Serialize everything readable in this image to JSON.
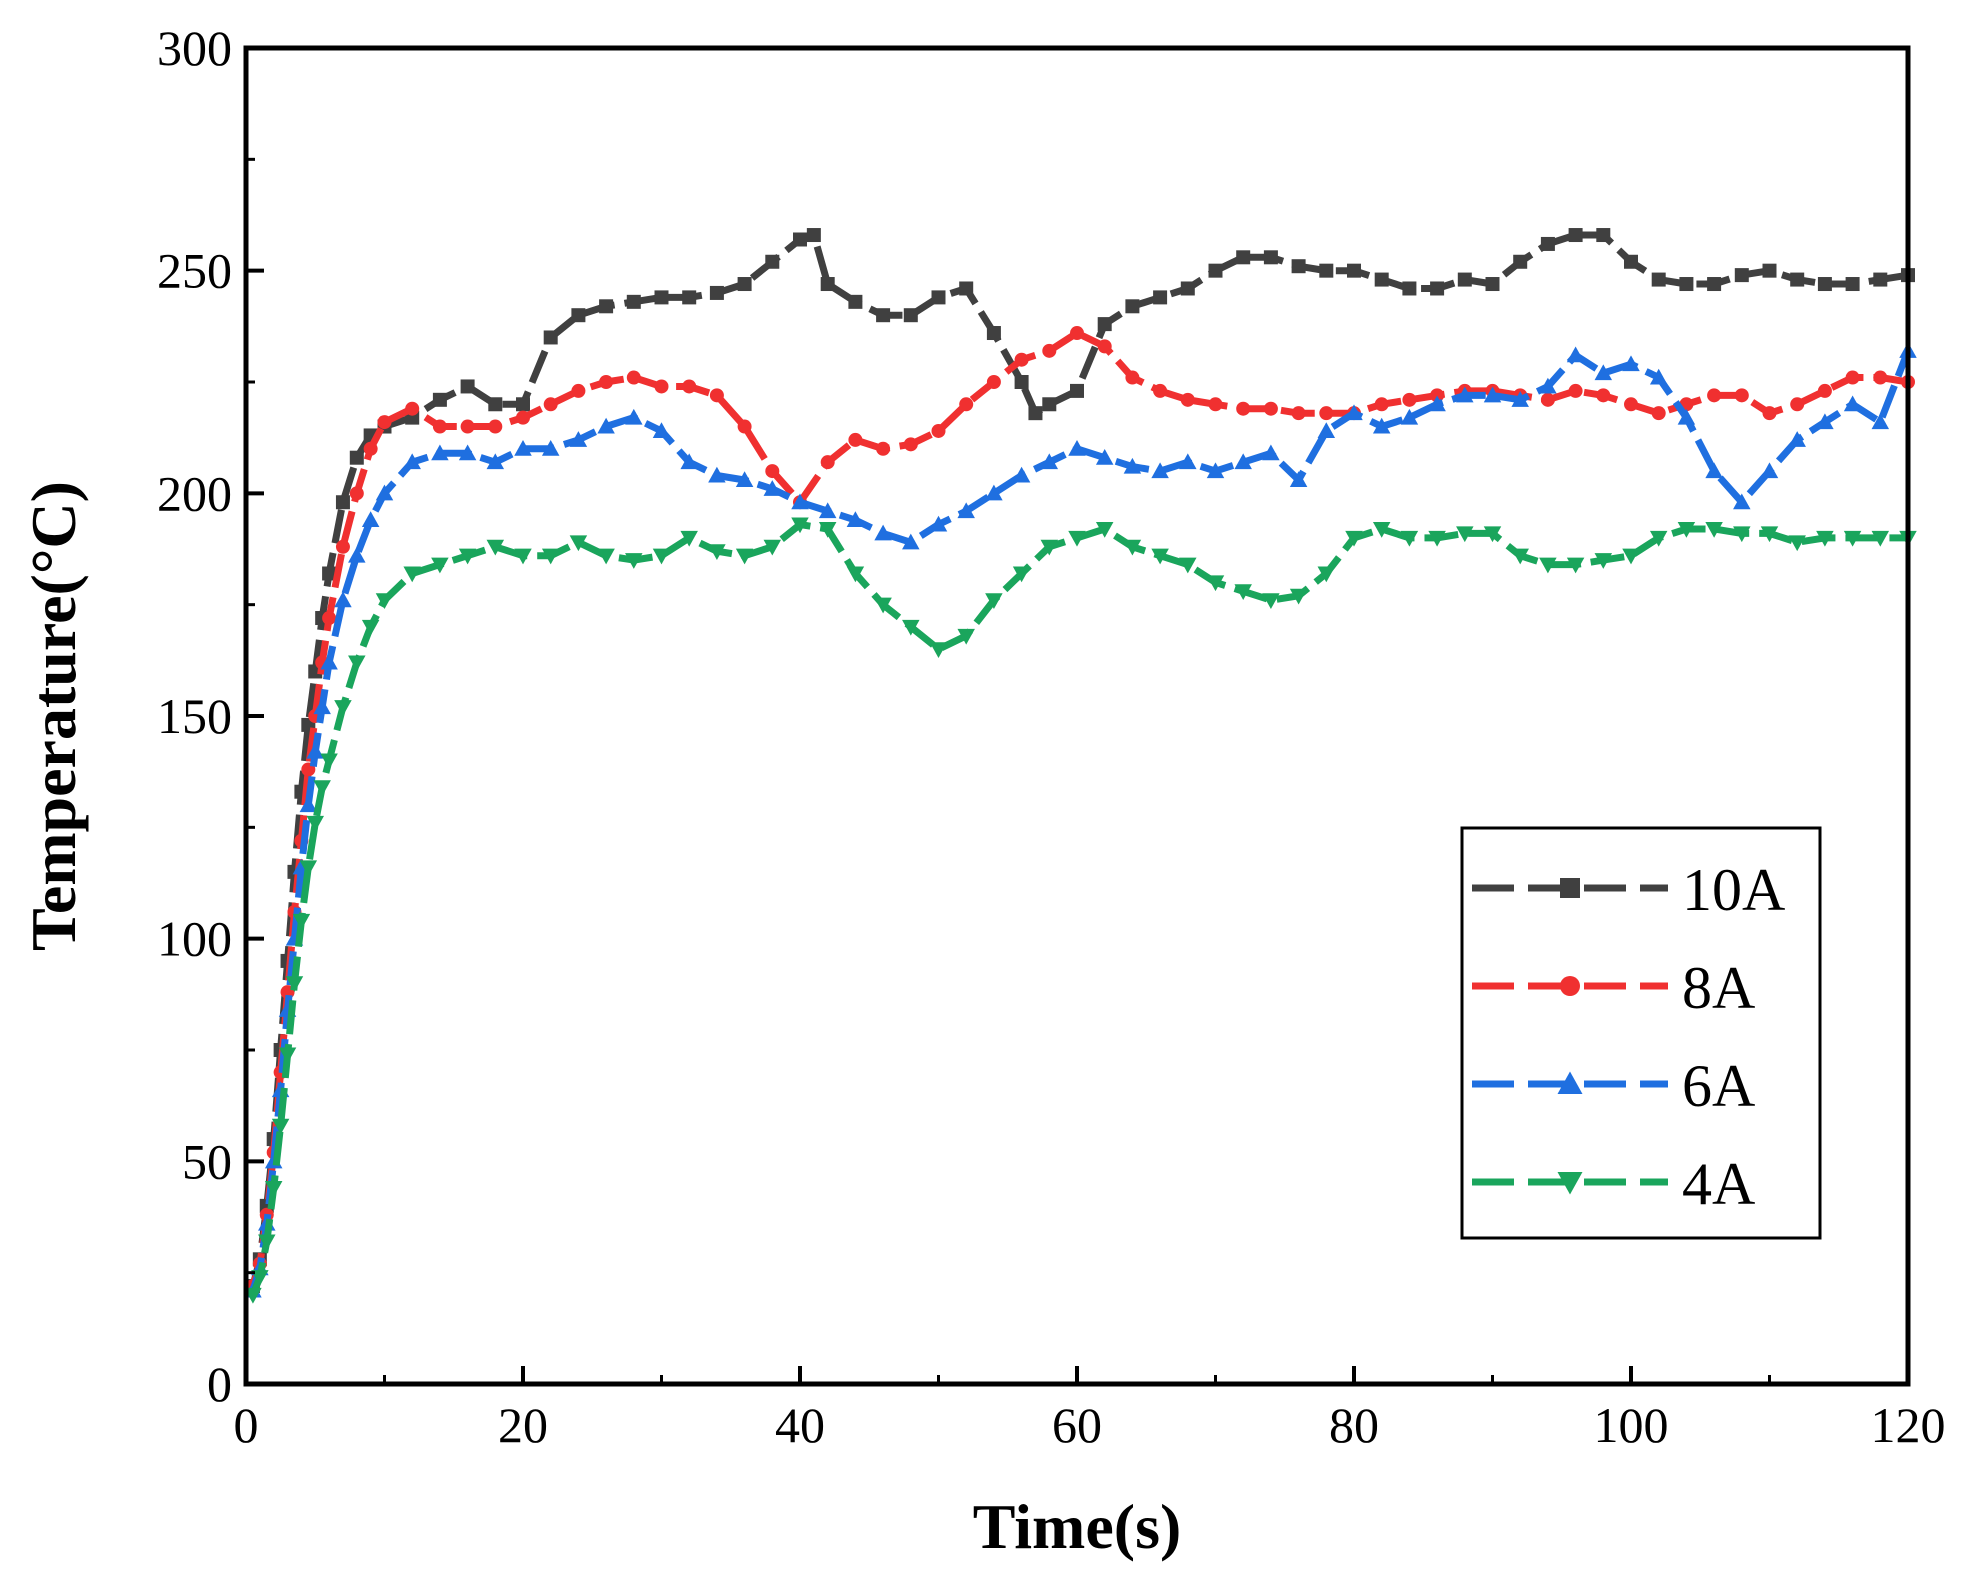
{
  "chart_data": {
    "type": "line",
    "title": "",
    "xlabel": "Time(s)",
    "ylabel": "Temperature(°C)",
    "xlim": [
      0,
      120
    ],
    "ylim": [
      0,
      300
    ],
    "xticks": [
      0,
      20,
      40,
      60,
      80,
      100,
      120
    ],
    "yticks": [
      0,
      50,
      100,
      150,
      200,
      250,
      300
    ],
    "grid": false,
    "legend_position": "right",
    "series": [
      {
        "name": "10A",
        "color": "#404040",
        "marker": "square",
        "x": [
          0.5,
          1,
          1.5,
          2,
          2.5,
          3,
          3.5,
          4,
          4.5,
          5,
          5.5,
          6,
          7,
          8,
          9,
          10,
          12,
          14,
          16,
          18,
          20,
          22,
          24,
          26,
          28,
          30,
          32,
          34,
          36,
          38,
          40,
          41,
          42,
          44,
          46,
          48,
          50,
          52,
          54,
          56,
          57,
          58,
          60,
          62,
          64,
          66,
          68,
          70,
          72,
          74,
          76,
          78,
          80,
          82,
          84,
          86,
          88,
          90,
          92,
          94,
          96,
          98,
          100,
          102,
          104,
          106,
          108,
          110,
          112,
          114,
          116,
          118,
          120
        ],
        "y": [
          22,
          28,
          40,
          55,
          75,
          95,
          115,
          133,
          148,
          160,
          172,
          182,
          198,
          208,
          213,
          215,
          217,
          221,
          224,
          220,
          220,
          235,
          240,
          242,
          243,
          244,
          244,
          245,
          247,
          252,
          257,
          258,
          247,
          243,
          240,
          240,
          244,
          246,
          236,
          225,
          218,
          220,
          223,
          238,
          242,
          244,
          246,
          250,
          253,
          253,
          251,
          250,
          250,
          248,
          246,
          246,
          248,
          247,
          252,
          256,
          258,
          258,
          252,
          248,
          247,
          247,
          249,
          250,
          248,
          247,
          247,
          248,
          249
        ]
      },
      {
        "name": "8A",
        "color": "#f03030",
        "marker": "circle",
        "x": [
          0.5,
          1,
          1.5,
          2,
          2.5,
          3,
          3.5,
          4,
          4.5,
          5,
          5.5,
          6,
          7,
          8,
          9,
          10,
          12,
          14,
          16,
          18,
          20,
          22,
          24,
          26,
          28,
          30,
          32,
          34,
          36,
          38,
          40,
          42,
          44,
          46,
          48,
          50,
          52,
          54,
          56,
          58,
          60,
          62,
          64,
          66,
          68,
          70,
          72,
          74,
          76,
          78,
          80,
          82,
          84,
          86,
          88,
          90,
          92,
          94,
          96,
          98,
          100,
          102,
          104,
          106,
          108,
          110,
          112,
          114,
          116,
          118,
          120
        ],
        "y": [
          22,
          27,
          38,
          52,
          70,
          88,
          106,
          122,
          138,
          150,
          162,
          172,
          188,
          200,
          210,
          216,
          219,
          215,
          215,
          215,
          217,
          220,
          223,
          225,
          226,
          224,
          224,
          222,
          215,
          205,
          198,
          207,
          212,
          210,
          211,
          214,
          220,
          225,
          230,
          232,
          236,
          233,
          226,
          223,
          221,
          220,
          219,
          219,
          218,
          218,
          218,
          220,
          221,
          222,
          223,
          223,
          222,
          221,
          223,
          222,
          220,
          218,
          220,
          222,
          222,
          218,
          220,
          223,
          226,
          226,
          225
        ]
      },
      {
        "name": "6A",
        "color": "#1f6fe0",
        "marker": "triangle-up",
        "x": [
          0.5,
          1,
          1.5,
          2,
          2.5,
          3,
          3.5,
          4,
          4.5,
          5,
          5.5,
          6,
          7,
          8,
          9,
          10,
          12,
          14,
          16,
          18,
          20,
          22,
          24,
          26,
          28,
          30,
          32,
          34,
          36,
          38,
          40,
          42,
          44,
          46,
          48,
          50,
          52,
          54,
          56,
          58,
          60,
          62,
          64,
          66,
          68,
          70,
          72,
          74,
          76,
          78,
          80,
          82,
          84,
          86,
          88,
          90,
          92,
          94,
          96,
          98,
          100,
          102,
          104,
          106,
          108,
          110,
          112,
          114,
          116,
          118,
          120
        ],
        "y": [
          21,
          26,
          36,
          50,
          66,
          84,
          100,
          116,
          130,
          142,
          152,
          162,
          176,
          186,
          194,
          200,
          207,
          209,
          209,
          207,
          210,
          210,
          212,
          215,
          217,
          214,
          207,
          204,
          203,
          201,
          198,
          196,
          194,
          191,
          189,
          193,
          196,
          200,
          204,
          207,
          210,
          208,
          206,
          205,
          207,
          205,
          207,
          209,
          203,
          214,
          218,
          215,
          217,
          220,
          222,
          222,
          221,
          224,
          231,
          227,
          229,
          226,
          217,
          205,
          198,
          205,
          212,
          216,
          220,
          216,
          232
        ]
      },
      {
        "name": "4A",
        "color": "#1aa55c",
        "marker": "triangle-down",
        "x": [
          0.5,
          1,
          1.5,
          2,
          2.5,
          3,
          3.5,
          4,
          4.5,
          5,
          5.5,
          6,
          7,
          8,
          9,
          10,
          12,
          14,
          16,
          18,
          20,
          22,
          24,
          26,
          28,
          30,
          32,
          34,
          36,
          38,
          40,
          42,
          44,
          46,
          48,
          50,
          52,
          54,
          56,
          58,
          60,
          62,
          64,
          66,
          68,
          70,
          72,
          74,
          76,
          78,
          80,
          82,
          84,
          86,
          88,
          90,
          92,
          94,
          96,
          98,
          100,
          102,
          104,
          106,
          108,
          110,
          112,
          114,
          116,
          118,
          120
        ],
        "y": [
          20,
          24,
          32,
          44,
          58,
          74,
          90,
          104,
          116,
          126,
          134,
          140,
          152,
          162,
          170,
          176,
          182,
          184,
          186,
          188,
          186,
          186,
          189,
          186,
          185,
          186,
          190,
          187,
          186,
          188,
          193,
          192,
          182,
          175,
          170,
          165,
          168,
          176,
          182,
          188,
          190,
          192,
          188,
          186,
          184,
          180,
          178,
          176,
          177,
          182,
          190,
          192,
          190,
          190,
          191,
          191,
          186,
          184,
          184,
          185,
          186,
          190,
          192,
          192,
          191,
          191,
          189,
          190,
          190,
          190,
          190
        ]
      }
    ]
  }
}
